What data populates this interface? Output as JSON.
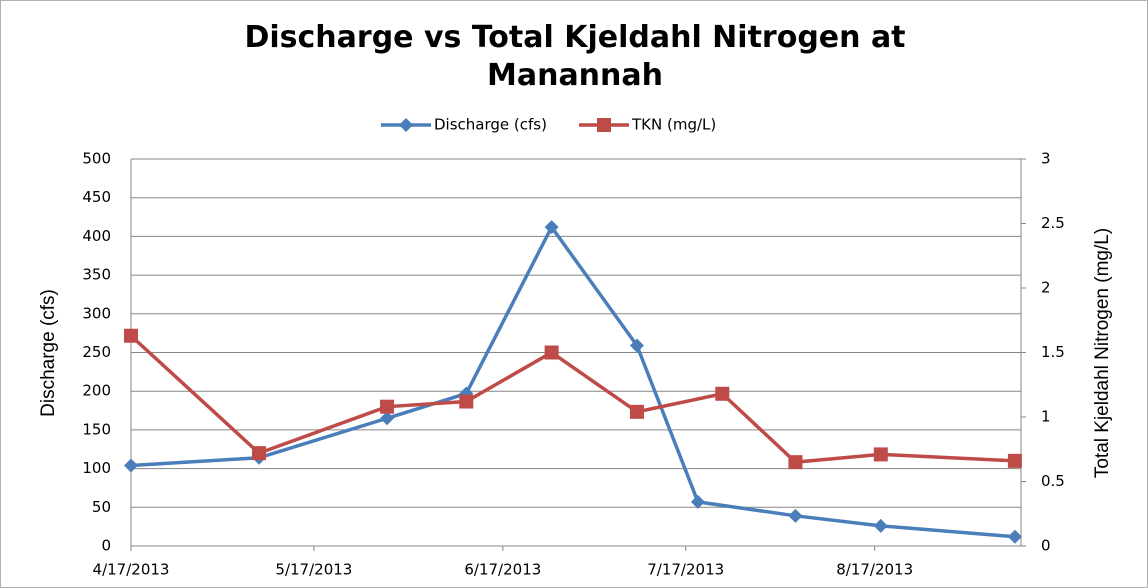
{
  "chart_data": {
    "type": "line",
    "title": "Discharge vs Total Kjeldahl Nitrogen at Manannah",
    "y_label": "Discharge (cfs)",
    "y2_label": "Total Kjeldahl Nitrogen (mg/L)",
    "xlim": [
      "2013-04-17",
      "2013-09-10"
    ],
    "xticks": [
      {
        "value": "2013-04-17",
        "label": "4/17/2013"
      },
      {
        "value": "2013-05-17",
        "label": "5/17/2013"
      },
      {
        "value": "2013-06-17",
        "label": "6/17/2013"
      },
      {
        "value": "2013-07-17",
        "label": "7/17/2013"
      },
      {
        "value": "2013-08-17",
        "label": "8/17/2013"
      }
    ],
    "ylim": [
      0,
      500
    ],
    "yticks": [
      0,
      50,
      100,
      150,
      200,
      250,
      300,
      350,
      400,
      450,
      500
    ],
    "y2lim": [
      0,
      3
    ],
    "y2ticks": [
      0,
      0.5,
      1,
      1.5,
      2,
      2.5,
      3
    ],
    "grid": true,
    "legend": "top",
    "series": [
      {
        "name": "Discharge (cfs)",
        "color": "#4a7ebb",
        "marker": "diamond",
        "x": [
          "2013-04-17",
          "2013-05-08",
          "2013-05-29",
          "2013-06-11",
          "2013-06-25",
          "2013-07-09",
          "2013-07-19",
          "2013-08-04",
          "2013-08-18",
          "2013-09-09"
        ],
        "values": [
          104,
          114,
          165,
          197,
          412,
          259,
          57,
          39,
          26,
          12
        ]
      },
      {
        "name": "TKN (mg/L)",
        "color": "#be4b48",
        "marker": "square",
        "axis": "y2",
        "x": [
          "2013-04-17",
          "2013-05-08",
          "2013-05-29",
          "2013-06-11",
          "2013-06-25",
          "2013-07-09",
          "2013-07-23",
          "2013-08-04",
          "2013-08-18",
          "2013-09-09"
        ],
        "values": [
          1.63,
          0.72,
          1.08,
          1.12,
          1.5,
          1.04,
          1.18,
          0.65,
          0.71,
          0.66
        ]
      }
    ]
  }
}
